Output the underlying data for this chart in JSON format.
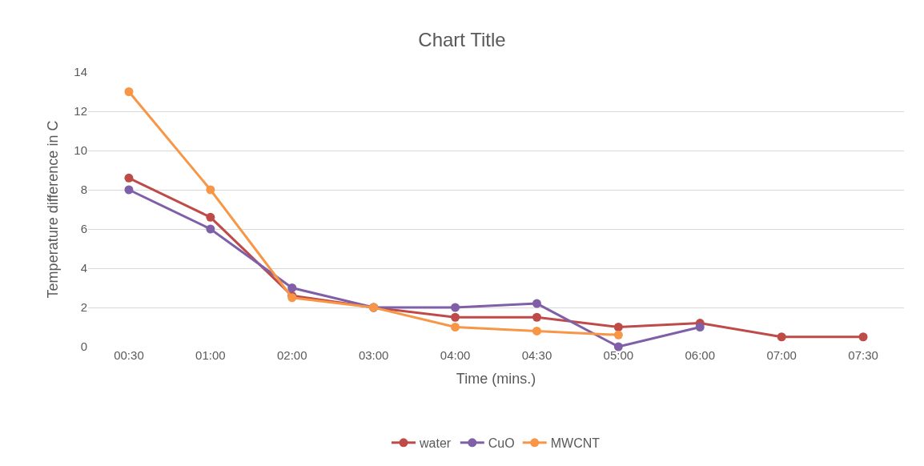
{
  "chart_data": {
    "type": "line",
    "title": "Chart Title",
    "xlabel": "Time (mins.)",
    "ylabel": "Temperature difference in C",
    "categories": [
      "00:30",
      "01:00",
      "02:00",
      "03:00",
      "04:00",
      "04:30",
      "05:00",
      "06:00",
      "07:00",
      "07:30"
    ],
    "series": [
      {
        "name": "water",
        "color": "#be4b48",
        "values": [
          8.6,
          6.6,
          2.6,
          2.0,
          1.5,
          1.5,
          1.0,
          1.2,
          0.5,
          0.5
        ]
      },
      {
        "name": "CuO",
        "color": "#7f60a8",
        "values": [
          8.0,
          6.0,
          3.0,
          2.0,
          2.0,
          2.2,
          0.0,
          1.0,
          null,
          null
        ]
      },
      {
        "name": "MWCNT",
        "color": "#f79646",
        "values": [
          13.0,
          8.0,
          2.5,
          2.0,
          1.0,
          0.8,
          0.6,
          null,
          null,
          null
        ]
      }
    ],
    "ylim": [
      0,
      14
    ],
    "yticks": [
      0,
      2,
      4,
      6,
      8,
      10,
      12,
      14
    ],
    "grid": "y",
    "legend": "bottom",
    "marker": "circle",
    "line_style": "solid"
  }
}
